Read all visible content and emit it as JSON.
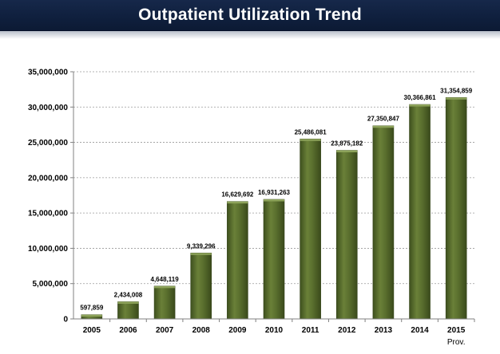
{
  "header": {
    "title": "Outpatient Utilization Trend"
  },
  "colors": {
    "banner": "#0f1f3d",
    "bar": "#566b2d",
    "bar_dark": "#3d4f1d",
    "bar_light": "#7a8f4a"
  },
  "chart_data": {
    "type": "bar",
    "title": "",
    "xlabel": "",
    "ylabel": "",
    "categories": [
      "2005",
      "2006",
      "2007",
      "2008",
      "2009",
      "2010",
      "2011",
      "2012",
      "2013",
      "2014",
      "2015"
    ],
    "values": [
      597859,
      2434008,
      4648119,
      9339296,
      16629692,
      16931263,
      25486081,
      23875182,
      27350847,
      30366861,
      31354859
    ],
    "data_labels": [
      "597,859",
      "2,434,008",
      "4,648,119",
      "9,339,296",
      "16,629,692",
      "16,931,263",
      "25,486,081",
      "23,875,182",
      "27,350,847",
      "30,366,861",
      "31,354,859"
    ],
    "ylim": [
      0,
      35000000
    ],
    "y_ticks": [
      "0",
      "5,000,000",
      "10,000,000",
      "15,000,000",
      "20,000,000",
      "25,000,000",
      "30,000,000",
      "35,000,000"
    ],
    "grid": true,
    "legend": "none",
    "annotation": "Prov."
  }
}
